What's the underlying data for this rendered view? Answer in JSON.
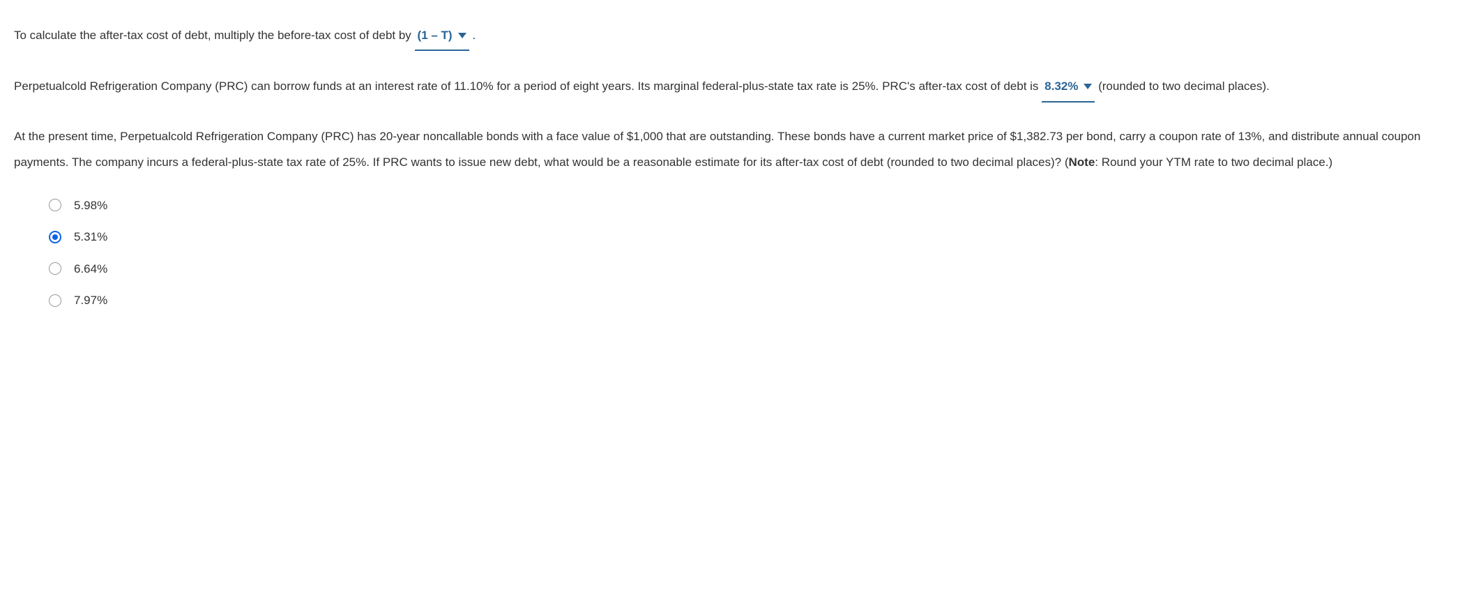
{
  "question1": {
    "text_before": "To calculate the after-tax cost of debt, multiply the before-tax cost of debt by ",
    "answer": "(1 – T)",
    "text_after": " ."
  },
  "question2": {
    "text_before": "Perpetualcold Refrigeration Company (PRC) can borrow funds at an interest rate of 11.10% for a period of eight years. Its marginal federal-plus-state tax rate is 25%. PRC's after-tax cost of debt is ",
    "answer": "8.32%",
    "text_after": " (rounded to two decimal places)."
  },
  "question3": {
    "text1": "At the present time, Perpetualcold Refrigeration Company (PRC) has 20-year noncallable bonds with a face value of $1,000 that are outstanding. These bonds have a current market price of $1,382.73 per bond, carry a coupon rate of 13%, and distribute annual coupon payments. The company incurs a federal-plus-state tax rate of 25%. If PRC wants to issue new debt, what would be a reasonable estimate for its after-tax cost of debt (rounded to two decimal places)? (",
    "note_label": "Note",
    "text2": ": Round your YTM rate to two decimal place.)",
    "options": [
      {
        "label": "5.98%",
        "selected": false
      },
      {
        "label": "5.31%",
        "selected": true
      },
      {
        "label": "6.64%",
        "selected": false
      },
      {
        "label": "7.97%",
        "selected": false
      }
    ]
  },
  "colors": {
    "link": "#2a6496",
    "radio_selected": "#0c63e7",
    "text": "#333333",
    "background": "#ffffff"
  }
}
